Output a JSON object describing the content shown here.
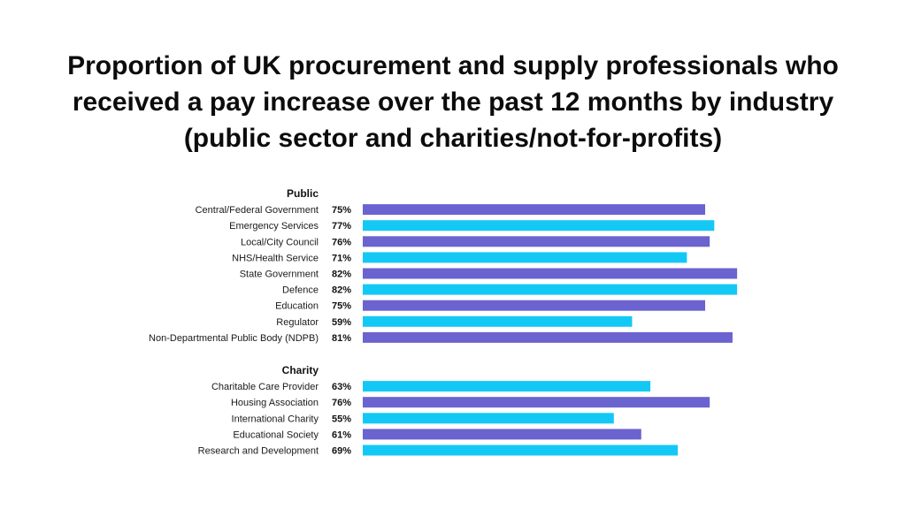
{
  "colors": {
    "purple": "#6b63cf",
    "cyan": "#14c8f6"
  },
  "chart_data": {
    "type": "bar",
    "orientation": "horizontal",
    "title": "Proportion of UK procurement and supply professionals who received a pay increase over the past 12 months by industry (public sector and charities/not-for-profits)",
    "xlim": [
      0,
      100
    ],
    "grid": false,
    "value_suffix": "%",
    "groups": [
      {
        "name": "Public",
        "items": [
          {
            "label": "Central/Federal Government",
            "value": 75,
            "color": "#6b63cf"
          },
          {
            "label": "Emergency Services",
            "value": 77,
            "color": "#14c8f6"
          },
          {
            "label": "Local/City Council",
            "value": 76,
            "color": "#6b63cf"
          },
          {
            "label": "NHS/Health Service",
            "value": 71,
            "color": "#14c8f6"
          },
          {
            "label": "State Government",
            "value": 82,
            "color": "#6b63cf"
          },
          {
            "label": "Defence",
            "value": 82,
            "color": "#14c8f6"
          },
          {
            "label": "Education",
            "value": 75,
            "color": "#6b63cf"
          },
          {
            "label": "Regulator",
            "value": 59,
            "color": "#14c8f6"
          },
          {
            "label": "Non-Departmental Public Body (NDPB)",
            "value": 81,
            "color": "#6b63cf"
          }
        ]
      },
      {
        "name": "Charity",
        "items": [
          {
            "label": "Charitable Care Provider",
            "value": 63,
            "color": "#14c8f6"
          },
          {
            "label": "Housing Association",
            "value": 76,
            "color": "#6b63cf"
          },
          {
            "label": "International Charity",
            "value": 55,
            "color": "#14c8f6"
          },
          {
            "label": "Educational Society",
            "value": 61,
            "color": "#6b63cf"
          },
          {
            "label": "Research and Development",
            "value": 69,
            "color": "#14c8f6"
          }
        ]
      }
    ]
  }
}
